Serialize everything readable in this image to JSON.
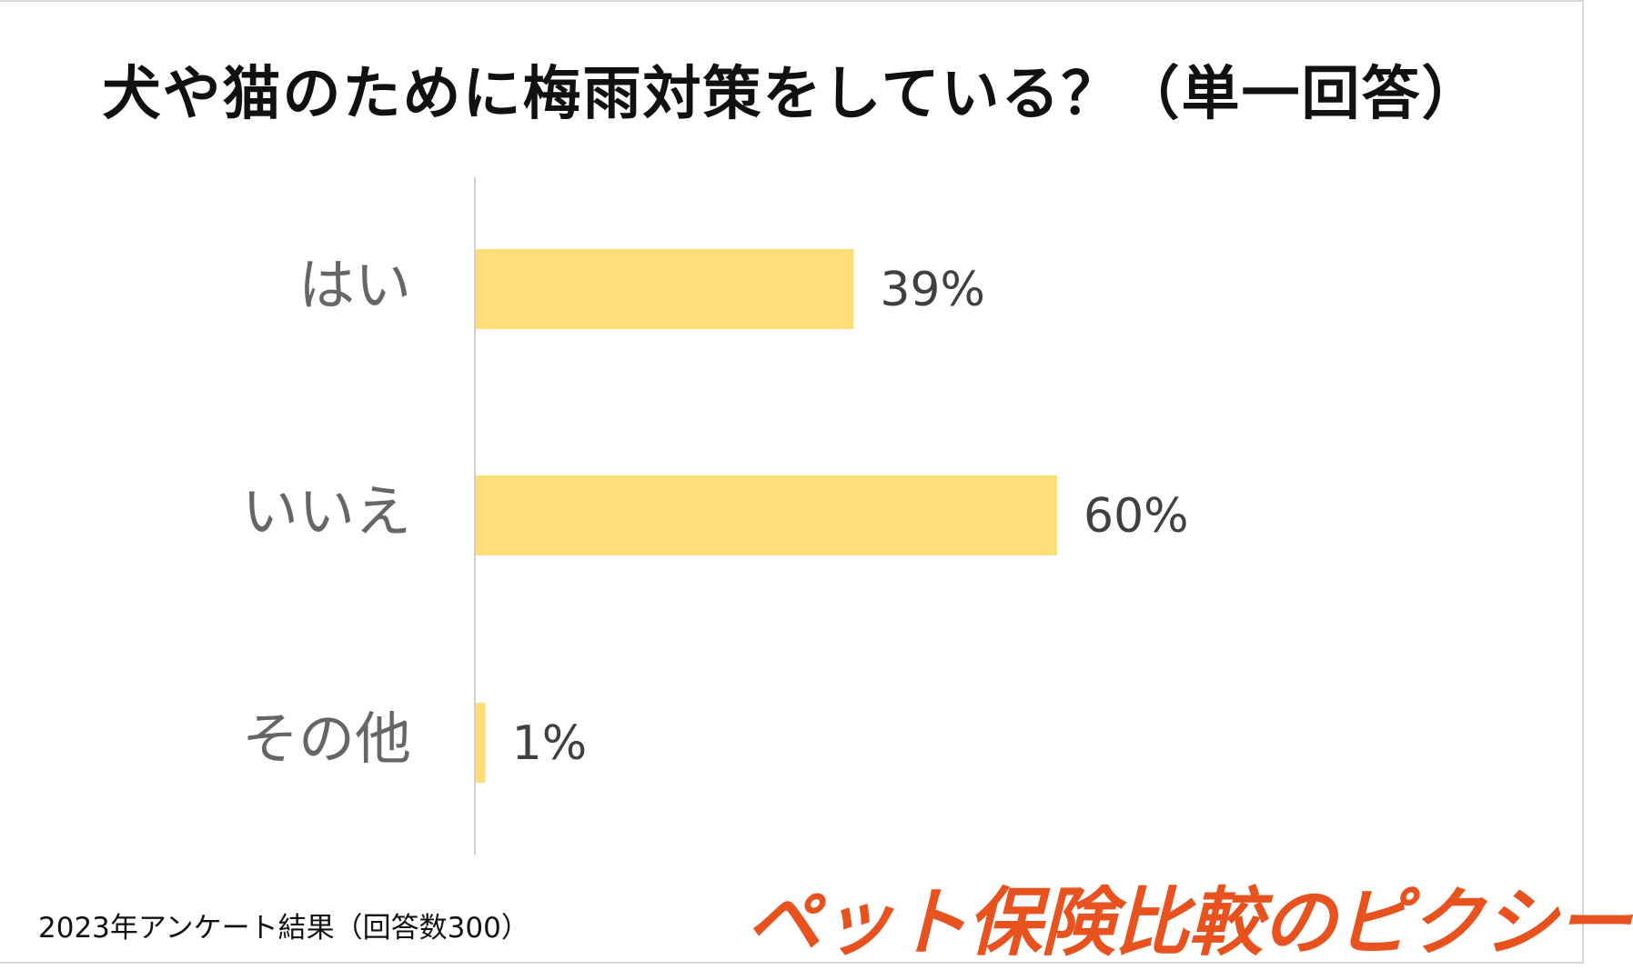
{
  "footnote": "2023年アンケート結果（回答数300）",
  "brand": {
    "text": "ペット保険比較のピクシー",
    "color": "#e8521e"
  },
  "chart_data": {
    "type": "bar",
    "orientation": "horizontal",
    "title": "犬や猫のために梅雨対策をしている？（単一回答）",
    "categories": [
      "はい",
      "いいえ",
      "その他"
    ],
    "values": [
      39,
      60,
      1
    ],
    "value_labels": [
      "39%",
      "60%",
      "1%"
    ],
    "unit": "%",
    "xlim": [
      0,
      100
    ],
    "grid": false,
    "legend": "none",
    "bar_color": "#ffdd78"
  }
}
